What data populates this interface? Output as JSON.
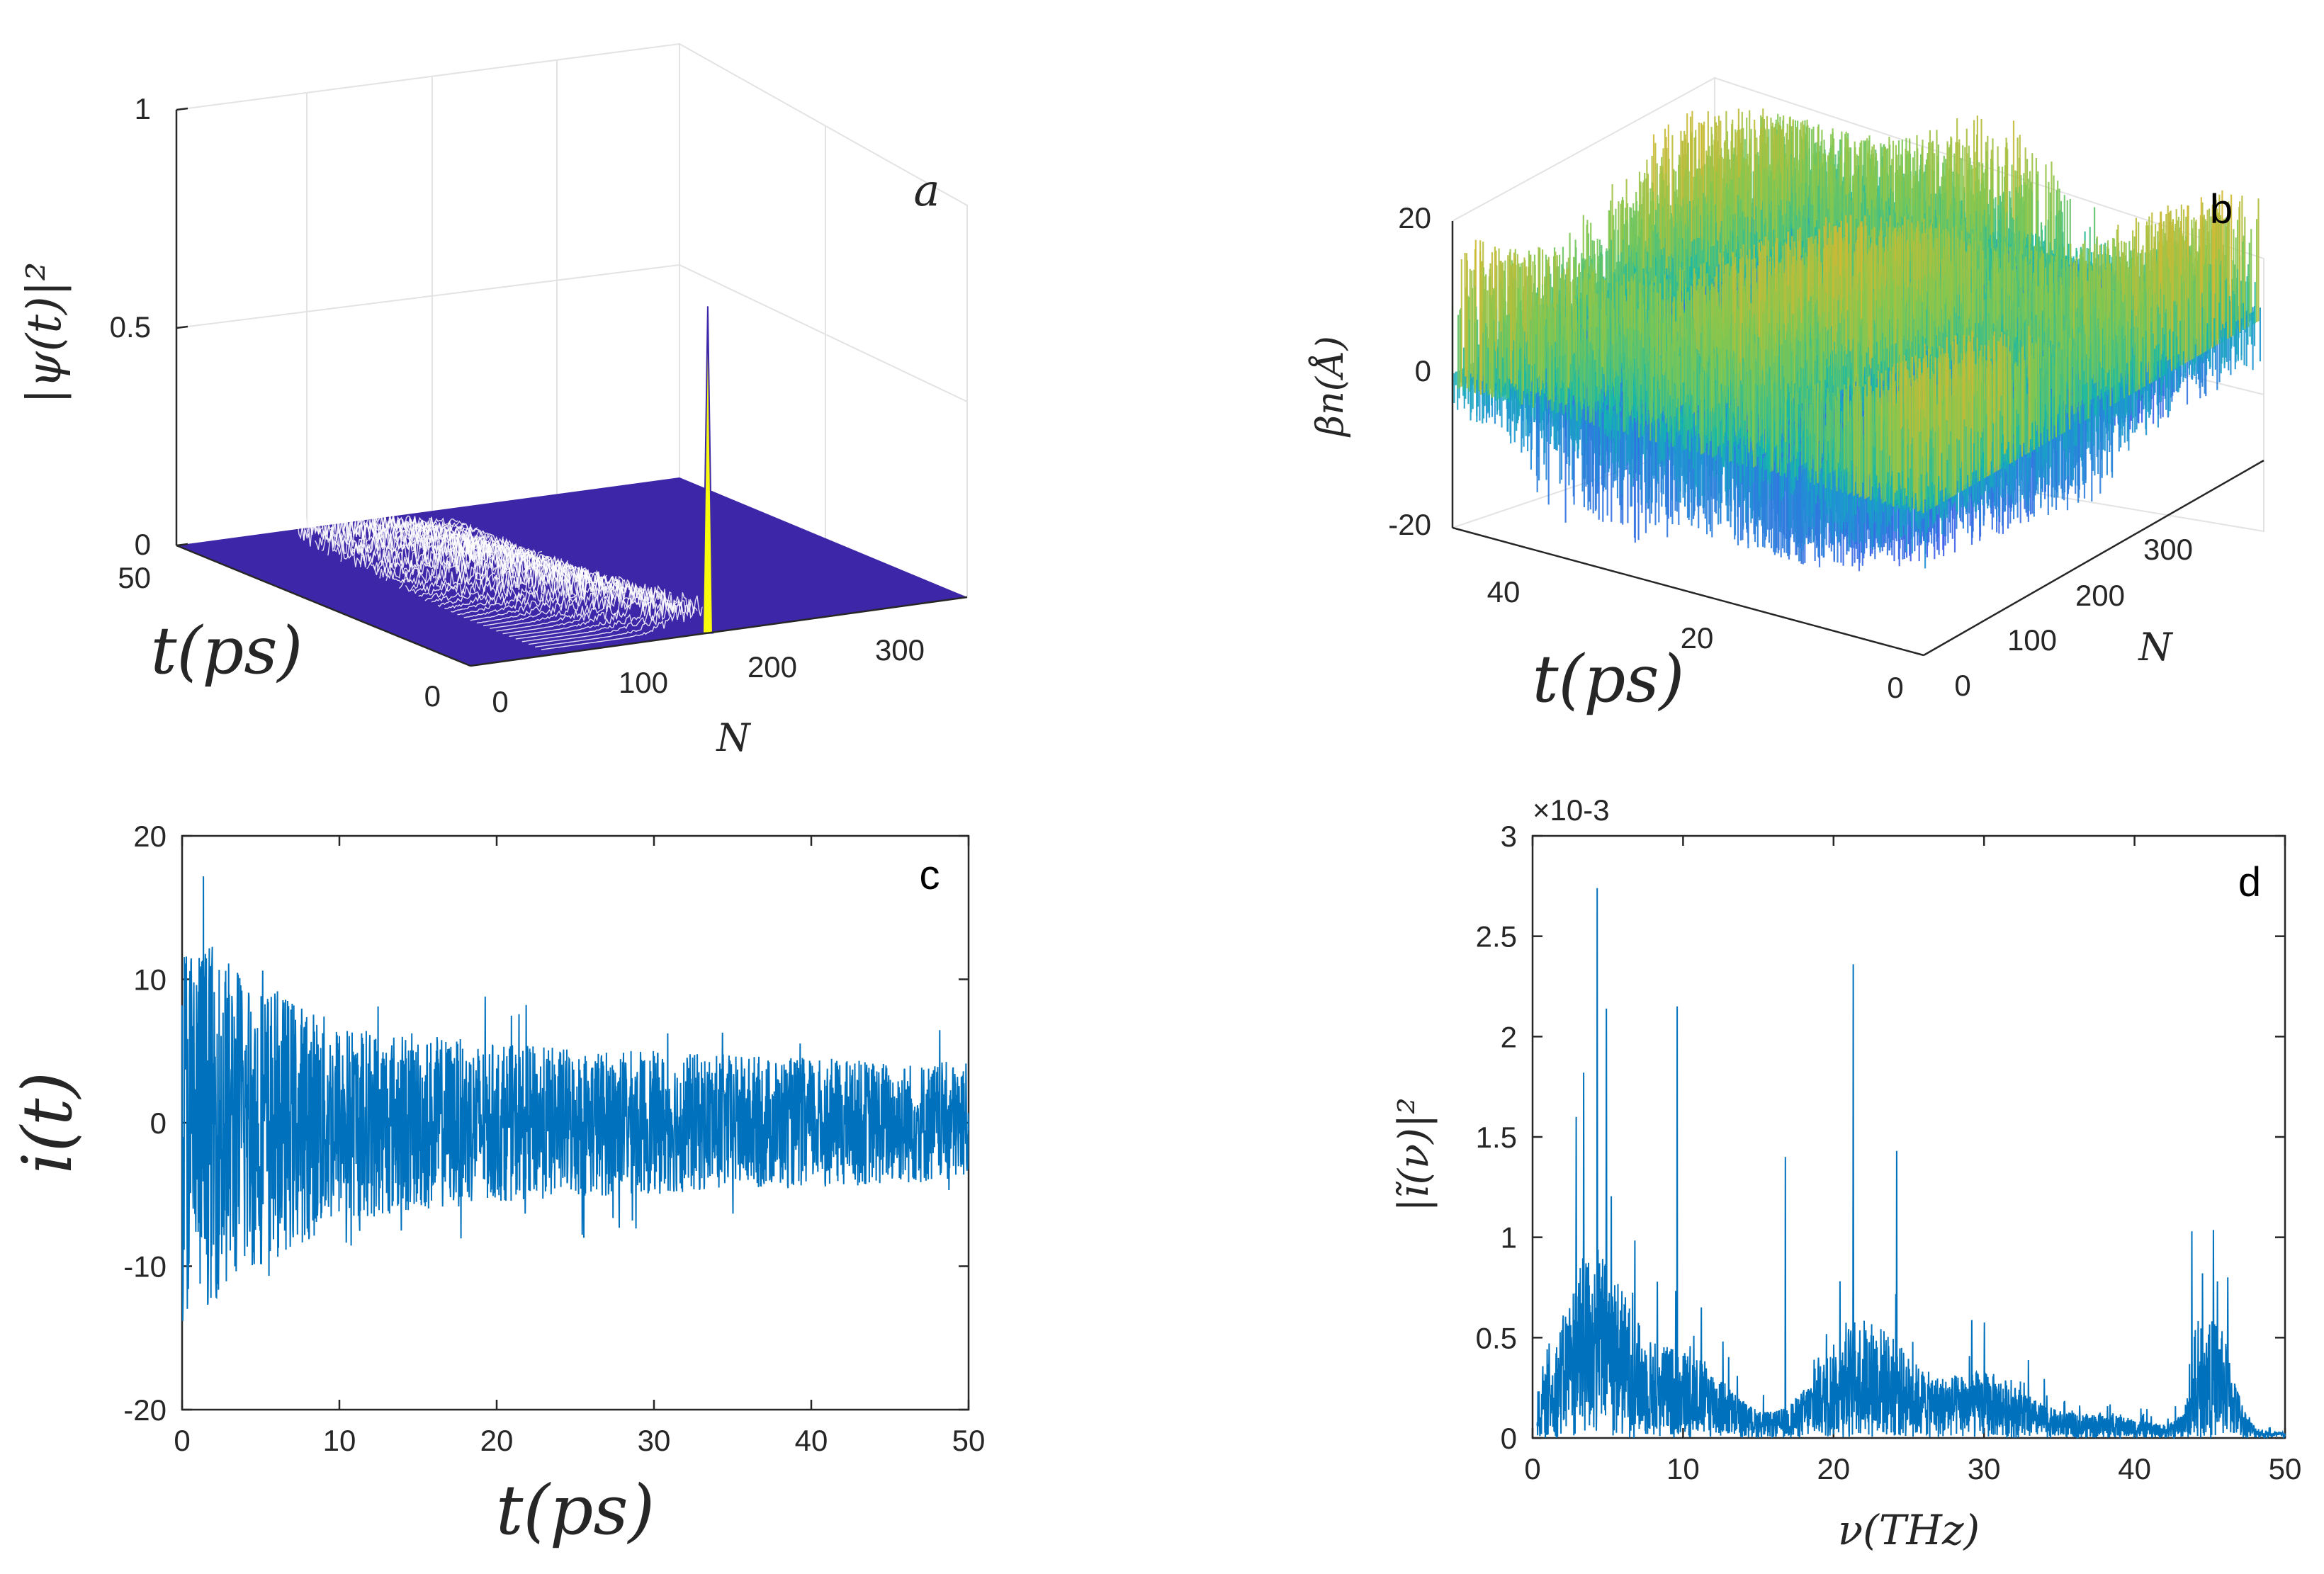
{
  "chart_data": [
    {
      "panel": "a",
      "type": "surface3d",
      "zlabel": "|ψ(t)|²",
      "ylabel": "t(ps)",
      "xlabel": "N",
      "z_ticks": [
        "0",
        "0.5",
        "1"
      ],
      "t_ticks": [
        "0",
        "50"
      ],
      "n_ticks": [
        "0",
        "100",
        "200",
        "300"
      ],
      "xlim": [
        0,
        360
      ],
      "ylim": [
        0,
        50
      ],
      "zlim": [
        0,
        1
      ],
      "peak": {
        "N": 172,
        "t": 0,
        "value": 0.75
      },
      "colors": {
        "base": "#3e26a8",
        "peak": "#f9fb0e"
      }
    },
    {
      "panel": "b",
      "type": "surface3d",
      "zlabel": "βn(Å)",
      "ylabel": "t(ps)",
      "xlabel": "N",
      "z_ticks": [
        "-20",
        "0",
        "20"
      ],
      "t_ticks": [
        "40",
        "20",
        "0"
      ],
      "n_ticks": [
        "0",
        "100",
        "200",
        "300"
      ],
      "xlim": [
        0,
        360
      ],
      "ylim": [
        0,
        50
      ],
      "zlim": [
        -20,
        20
      ],
      "colors": {
        "low": "#4a63f0",
        "mid": "#19b8b0",
        "high": "#e8b22a"
      }
    },
    {
      "panel": "c",
      "type": "line",
      "ylabel": "i(t)",
      "xlabel": "t(ps)",
      "x_ticks": [
        "0",
        "10",
        "20",
        "30",
        "40",
        "50"
      ],
      "y_ticks": [
        "-20",
        "-10",
        "0",
        "10",
        "20"
      ],
      "xlim": [
        0,
        50
      ],
      "ylim": [
        -20,
        20
      ],
      "envelope": [
        [
          0,
          14
        ],
        [
          5,
          10
        ],
        [
          10,
          7
        ],
        [
          20,
          5.5
        ],
        [
          30,
          5
        ],
        [
          40,
          4.5
        ],
        [
          50,
          4.2
        ]
      ],
      "color": "#0072bd"
    },
    {
      "panel": "d",
      "type": "line",
      "ylabel": "|ĩ(ν)|²",
      "xlabel": "ν(THz)",
      "multiplier": "×10-3",
      "x_ticks": [
        "0",
        "10",
        "20",
        "30",
        "40",
        "50"
      ],
      "y_ticks": [
        "0",
        "0.5",
        "1",
        "1.5",
        "2",
        "2.5",
        "3"
      ],
      "xlim": [
        0,
        50
      ],
      "ylim": [
        0,
        3
      ],
      "peaks": [
        {
          "x": 2.9,
          "y": 1.6
        },
        {
          "x": 3.4,
          "y": 1.82
        },
        {
          "x": 4.3,
          "y": 2.74
        },
        {
          "x": 4.9,
          "y": 2.14
        },
        {
          "x": 9.6,
          "y": 2.15
        },
        {
          "x": 16.8,
          "y": 1.4
        },
        {
          "x": 21.3,
          "y": 2.36
        },
        {
          "x": 24.2,
          "y": 1.43
        },
        {
          "x": 43.8,
          "y": 1.03
        },
        {
          "x": 45.5,
          "y": 0.78
        },
        {
          "x": 46.2,
          "y": 0.8
        }
      ],
      "color": "#0072bd"
    }
  ]
}
